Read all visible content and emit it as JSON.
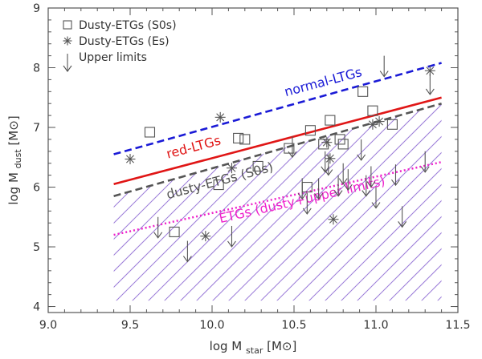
{
  "chart_data": {
    "type": "scatter",
    "title": "",
    "xlabel": "log M",
    "xlabel_sub": "star",
    "xlabel_unit": "[M⊙]",
    "ylabel": "log M",
    "ylabel_sub": "dust",
    "ylabel_unit": "[M⊙]",
    "xlim": [
      9.0,
      11.5
    ],
    "ylim": [
      3.9,
      9.0
    ],
    "xticks": [
      9.0,
      9.5,
      10.0,
      10.5,
      11.0,
      11.5
    ],
    "xtick_labels": [
      "9.0",
      "9.5",
      "10.0",
      "10.5",
      "11.0",
      "11.5"
    ],
    "yticks": [
      4,
      5,
      6,
      7,
      8,
      9
    ],
    "ytick_labels": [
      "4",
      "5",
      "6",
      "7",
      "8",
      "9"
    ],
    "x_minor_step": 0.1,
    "y_minor_step": 0.2,
    "grid": false,
    "legend_position": "top-left",
    "legend": [
      {
        "label": "Dusty-ETGs (S0s)",
        "marker": "square"
      },
      {
        "label": "Dusty-ETGs (Es)",
        "marker": "asterisk"
      },
      {
        "label": "Upper limits",
        "marker": "arrow-down"
      }
    ],
    "shaded_region": {
      "description_key": "hatched",
      "color": "#9b7bd8",
      "x_range": [
        9.4,
        11.4
      ],
      "upper": [
        [
          9.4,
          5.85
        ],
        [
          11.4,
          7.4
        ]
      ],
      "lower": [
        [
          9.4,
          4.1
        ],
        [
          11.4,
          4.1
        ]
      ]
    },
    "lines": [
      {
        "name": "normal-LTGs",
        "style": "dashed",
        "color": "#1a1ad6",
        "x": [
          9.4,
          11.4
        ],
        "y": [
          6.55,
          8.08
        ],
        "label_at": [
          10.45,
          7.52
        ],
        "label_angle": -15
      },
      {
        "name": "red-LTGs",
        "style": "solid",
        "color": "#e01616",
        "x": [
          9.4,
          11.4
        ],
        "y": [
          6.05,
          7.5
        ],
        "label_at": [
          9.73,
          6.48
        ],
        "label_angle": -15
      },
      {
        "name": "dusty-ETGs (S0s)",
        "style": "dashed",
        "color": "#555555",
        "x": [
          9.4,
          11.4
        ],
        "y": [
          5.85,
          7.4
        ],
        "label_at": [
          9.73,
          5.8
        ],
        "label_angle": -15
      },
      {
        "name": "ETGs (dusty+upper limits)",
        "style": "dotted",
        "color": "#ee22cc",
        "x": [
          9.4,
          11.4
        ],
        "y": [
          5.2,
          6.42
        ],
        "label_at": [
          10.05,
          5.4
        ],
        "label_angle": -13
      }
    ],
    "series": [
      {
        "name": "Dusty-ETGs (S0s)",
        "marker": "square",
        "points": [
          {
            "x": 9.62,
            "y": 6.92
          },
          {
            "x": 10.04,
            "y": 6.04
          },
          {
            "x": 10.16,
            "y": 6.82
          },
          {
            "x": 10.2,
            "y": 6.8
          },
          {
            "x": 10.28,
            "y": 6.35
          },
          {
            "x": 10.47,
            "y": 6.65
          },
          {
            "x": 10.58,
            "y": 6.0
          },
          {
            "x": 10.6,
            "y": 6.95
          },
          {
            "x": 10.72,
            "y": 7.12
          },
          {
            "x": 10.68,
            "y": 6.72
          },
          {
            "x": 10.78,
            "y": 6.8
          },
          {
            "x": 10.8,
            "y": 6.72
          },
          {
            "x": 10.92,
            "y": 7.6
          },
          {
            "x": 10.98,
            "y": 7.28
          },
          {
            "x": 11.1,
            "y": 7.05
          },
          {
            "x": 9.77,
            "y": 5.25
          }
        ]
      },
      {
        "name": "Dusty-ETGs (Es)",
        "marker": "asterisk",
        "points": [
          {
            "x": 9.5,
            "y": 6.47
          },
          {
            "x": 10.05,
            "y": 7.17
          },
          {
            "x": 10.12,
            "y": 6.32
          },
          {
            "x": 9.96,
            "y": 5.18
          },
          {
            "x": 10.7,
            "y": 6.75
          },
          {
            "x": 10.72,
            "y": 6.48
          },
          {
            "x": 10.74,
            "y": 5.46
          },
          {
            "x": 10.98,
            "y": 7.05
          },
          {
            "x": 11.02,
            "y": 7.1
          },
          {
            "x": 11.33,
            "y": 7.95
          }
        ]
      },
      {
        "name": "Upper limits",
        "marker": "arrow-down",
        "points": [
          {
            "x": 9.67,
            "y": 5.5
          },
          {
            "x": 9.85,
            "y": 5.1
          },
          {
            "x": 10.12,
            "y": 5.35
          },
          {
            "x": 10.49,
            "y": 6.85
          },
          {
            "x": 10.55,
            "y": 6.15
          },
          {
            "x": 10.58,
            "y": 5.9
          },
          {
            "x": 10.65,
            "y": 6.15
          },
          {
            "x": 10.69,
            "y": 6.6
          },
          {
            "x": 10.71,
            "y": 6.55
          },
          {
            "x": 10.77,
            "y": 6.2
          },
          {
            "x": 10.8,
            "y": 6.4
          },
          {
            "x": 10.83,
            "y": 6.3
          },
          {
            "x": 10.91,
            "y": 6.8
          },
          {
            "x": 10.94,
            "y": 6.2
          },
          {
            "x": 10.97,
            "y": 6.35
          },
          {
            "x": 11.0,
            "y": 6.0
          },
          {
            "x": 11.05,
            "y": 8.2
          },
          {
            "x": 11.12,
            "y": 6.38
          },
          {
            "x": 11.16,
            "y": 5.68
          },
          {
            "x": 11.3,
            "y": 6.6
          },
          {
            "x": 11.33,
            "y": 7.9
          }
        ]
      }
    ]
  }
}
